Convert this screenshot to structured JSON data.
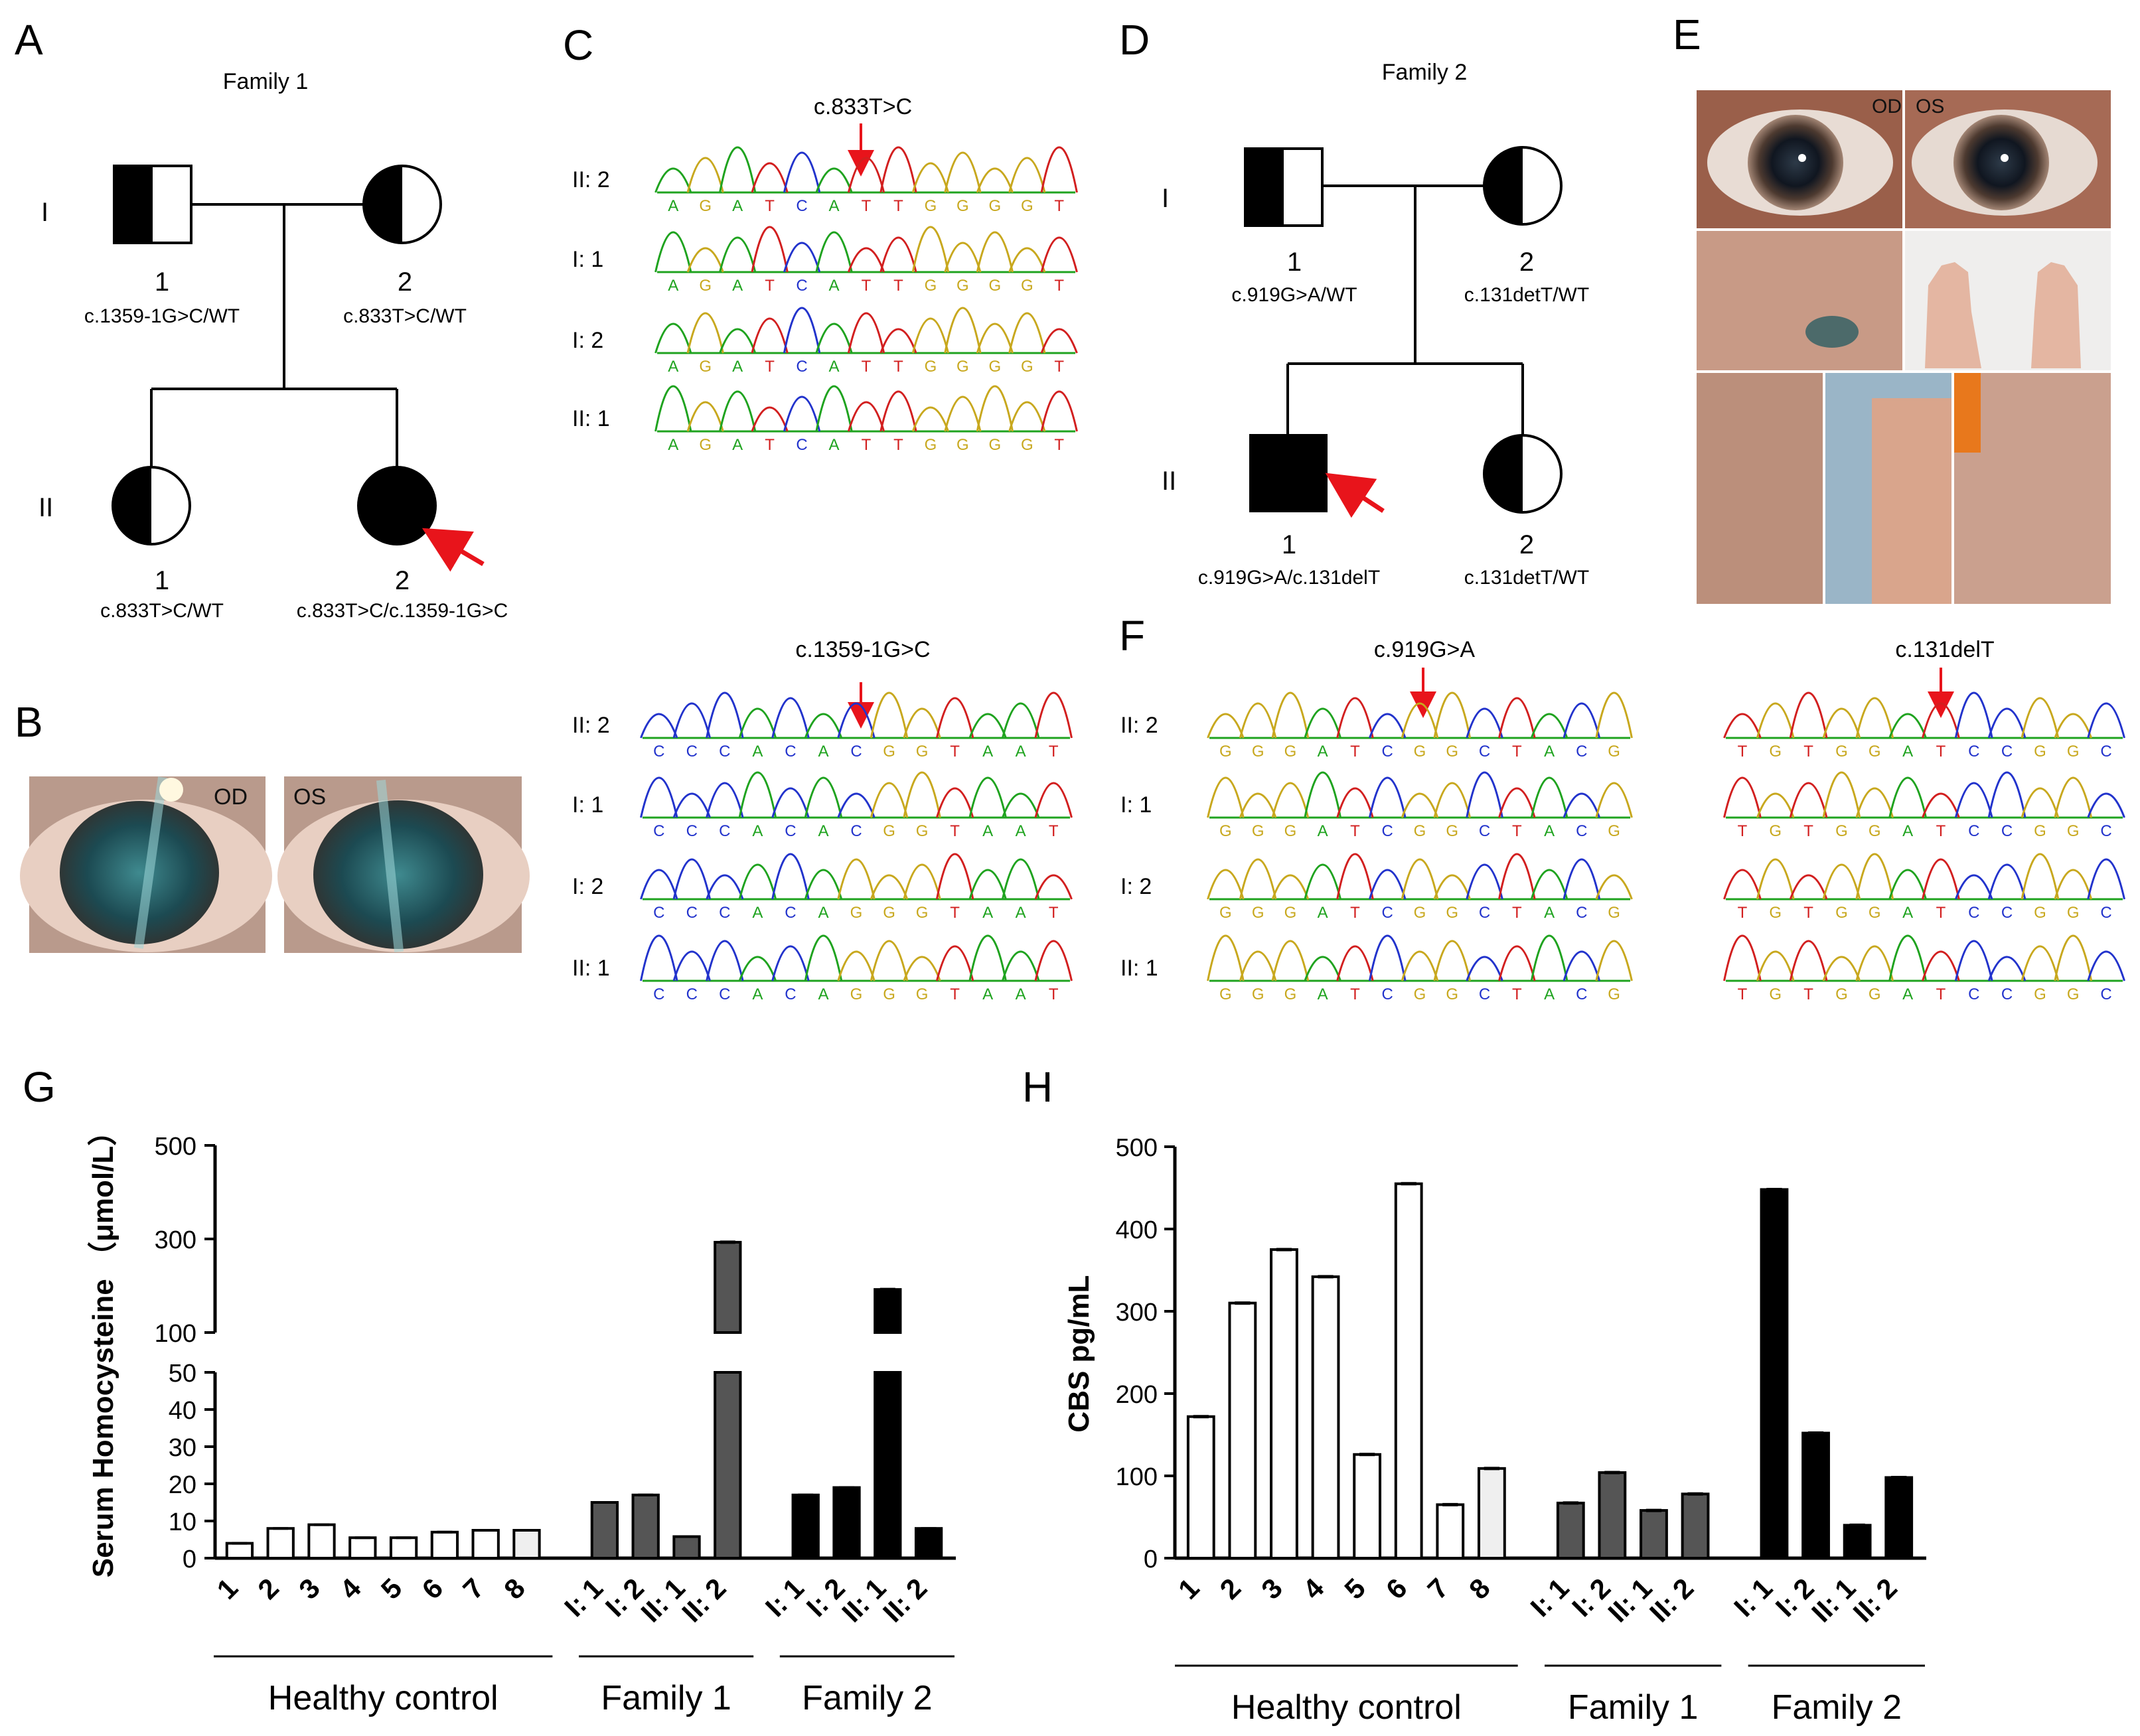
{
  "panels": {
    "A": "A",
    "B": "B",
    "C": "C",
    "D": "D",
    "E": "E",
    "F": "F",
    "G": "G",
    "H": "H"
  },
  "pedigree1": {
    "title": "Family 1",
    "gen_I": "I",
    "gen_II": "II",
    "members": [
      {
        "id": "1",
        "genotype": "c.1359-1G>C/WT"
      },
      {
        "id": "2",
        "genotype": "c.833T>C/WT"
      },
      {
        "id": "1",
        "genotype": "c.833T>C/WT"
      },
      {
        "id": "2",
        "genotype": "c.833T>C/c.1359-1G>C"
      }
    ]
  },
  "pedigree2": {
    "title": "Family 2",
    "gen_I": "I",
    "gen_II": "II",
    "members": [
      {
        "id": "1",
        "genotype": "c.919G>A/WT"
      },
      {
        "id": "2",
        "genotype": "c.131detT/WT"
      },
      {
        "id": "1",
        "genotype": "c.919G>A/c.131delT"
      },
      {
        "id": "2",
        "genotype": "c.131detT/WT"
      }
    ]
  },
  "photo_labels": {
    "od": "OD",
    "os": "OS"
  },
  "sequencing": {
    "C_top": {
      "mutation": "c.833T>C",
      "bases": [
        "A",
        "G",
        "A",
        "T",
        "C",
        "A",
        "T",
        "T",
        "G",
        "G",
        "G",
        "G",
        "T"
      ],
      "rows": [
        "II: 2",
        "I: 1",
        "I: 2",
        "II: 1"
      ]
    },
    "C_bottom": {
      "mutation": "c.1359-1G>C",
      "bases": [
        "C",
        "C",
        "C",
        "A",
        "C",
        "A",
        "C",
        "G",
        "G",
        "T",
        "A",
        "A",
        "T"
      ],
      "rows": [
        "II: 2",
        "I: 1",
        "I: 2",
        "II: 1"
      ],
      "bases_alt": [
        "C",
        "C",
        "C",
        "A",
        "C",
        "A",
        "G",
        "G",
        "G",
        "T",
        "A",
        "A",
        "T"
      ]
    },
    "F_left": {
      "mutation": "c.919G>A",
      "bases": [
        "G",
        "G",
        "G",
        "A",
        "T",
        "C",
        "G",
        "G",
        "C",
        "T",
        "A",
        "C",
        "G"
      ],
      "rows": [
        "II: 2",
        "I: 1",
        "I: 2",
        "II: 1"
      ]
    },
    "F_right": {
      "mutation": "c.131delT",
      "bases": [
        "T",
        "G",
        "T",
        "G",
        "G",
        "A",
        "T",
        "C",
        "C",
        "G",
        "G",
        "C"
      ],
      "rows": [
        "II: 2",
        "I: 1",
        "I: 2",
        "II: 1"
      ]
    }
  },
  "colors": {
    "A": "#1fa31f",
    "C": "#2233cc",
    "G": "#c8a81e",
    "T": "#d21f1f",
    "arrow": "#e8141b",
    "white": "#ffffff",
    "light": "#efefef",
    "dark": "#555555",
    "black": "#000000"
  },
  "groups": {
    "healthy": "Healthy control",
    "family1": "Family 1",
    "family2": "Family 2"
  },
  "chart_data": [
    {
      "panel": "G",
      "type": "bar",
      "ylabel": "Serum Homocysteine （μmol/L）",
      "broken_axis": true,
      "y_lower_range": [
        0,
        50
      ],
      "y_upper_range": [
        100,
        500
      ],
      "yticks_lower": [
        "0",
        "10",
        "20",
        "30",
        "40",
        "50"
      ],
      "yticks_upper": [
        "100",
        "300",
        "500"
      ],
      "categories": [
        "1",
        "2",
        "3",
        "4",
        "5",
        "6",
        "7",
        "8",
        "I: 1",
        "I: 2",
        "II: 1",
        "II: 2",
        "I: 1",
        "I: 2",
        "II: 1",
        "II: 2"
      ],
      "values": [
        4,
        8,
        9,
        5.5,
        5.5,
        7,
        7.5,
        7.5,
        15,
        17,
        5.8,
        293,
        17,
        19,
        192,
        8
      ],
      "fills": [
        "white",
        "white",
        "white",
        "white",
        "white",
        "white",
        "white",
        "light",
        "dark",
        "dark",
        "dark",
        "dark",
        "black",
        "black",
        "black",
        "black"
      ],
      "groups": [
        "Healthy control",
        "Family 1",
        "Family 2"
      ]
    },
    {
      "panel": "H",
      "type": "bar",
      "ylabel": "CBS pg/mL",
      "ylim": [
        0,
        500
      ],
      "yticks": [
        "0",
        "100",
        "200",
        "300",
        "400",
        "500"
      ],
      "categories": [
        "1",
        "2",
        "3",
        "4",
        "5",
        "6",
        "7",
        "8",
        "I: 1",
        "I: 2",
        "II: 1",
        "II: 2",
        "I: 1",
        "I: 2",
        "II: 1",
        "II: 2"
      ],
      "values": [
        172,
        310,
        375,
        342,
        126,
        455,
        65,
        109,
        67,
        104,
        58,
        78,
        448,
        152,
        40,
        98
      ],
      "fills": [
        "white",
        "white",
        "white",
        "white",
        "white",
        "white",
        "white",
        "light",
        "dark",
        "dark",
        "dark",
        "dark",
        "black",
        "black",
        "black",
        "black"
      ],
      "groups": [
        "Healthy control",
        "Family 1",
        "Family 2"
      ]
    }
  ]
}
